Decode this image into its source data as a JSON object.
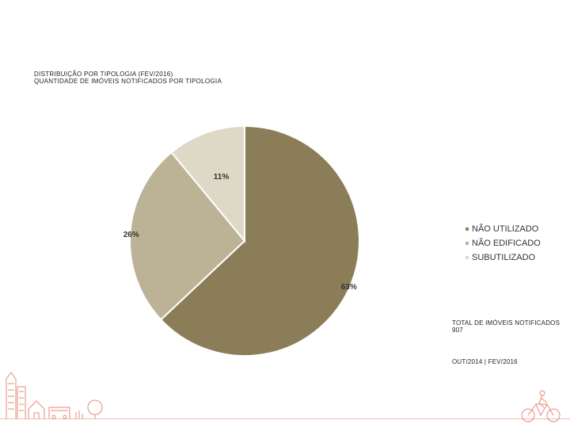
{
  "header": {
    "line1": "DISTRIBUIÇÃO POR TIPOLOGIA (FEV/2016)",
    "line2": "QUANTIDADE DE IMÓVEIS NOTIFICADOS POR TIPOLOGIA"
  },
  "chart_data": {
    "type": "pie",
    "title": "",
    "slices": [
      {
        "label": "NÃO UTILIZADO",
        "value": 63,
        "display": "63%",
        "color": "#8b7d57"
      },
      {
        "label": "NÃO EDIFICADO",
        "value": 26,
        "display": "26%",
        "color": "#bcb397"
      },
      {
        "label": "SUBUTILIZADO",
        "value": 11,
        "display": "11%",
        "color": "#ddd9c6"
      }
    ],
    "start": "12 o'clock",
    "direction": "clockwise",
    "legend_position": "right"
  },
  "info": {
    "total_label": "TOTAL DE IMÓVEIS NOTIFICADOS",
    "total_value": "907",
    "period": "OUT/2014 | FEV/2016"
  },
  "decor": {
    "line_color": "#e98a7a",
    "icons": [
      "city-skyline-icon",
      "cyclist-icon"
    ]
  }
}
